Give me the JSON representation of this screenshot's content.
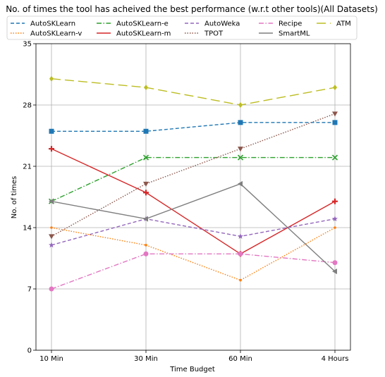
{
  "chart_data": {
    "type": "line",
    "title": "No. of times the tool has acheived the best performance (w.r.t other tools)(All Datasets)",
    "xlabel": "Time Budget",
    "ylabel": "No. of times",
    "categories": [
      "10 Min",
      "30 Min",
      "60 Min",
      "4 Hours"
    ],
    "ylim": [
      0,
      35
    ],
    "yticks": [
      0,
      7,
      14,
      21,
      28,
      35
    ],
    "grid": true,
    "legend_position": "top",
    "series": [
      {
        "name": "AutoSKLearn",
        "values": [
          25,
          25,
          26,
          26
        ],
        "color": "#1f77b4",
        "dash": "5,3",
        "marker": "square"
      },
      {
        "name": "AutoSKLearn-v",
        "values": [
          14,
          12,
          8,
          14
        ],
        "color": "#ff7f0e",
        "dash": "1.5,2",
        "marker": "dot"
      },
      {
        "name": "AutoSKLearn-e",
        "values": [
          17,
          22,
          22,
          22
        ],
        "color": "#2ca02c",
        "dash": "7,2.5,1.5,2.5",
        "marker": "x"
      },
      {
        "name": "AutoSKLearn-m",
        "values": [
          23,
          18,
          11,
          17
        ],
        "color": "#d62728",
        "dash": "",
        "marker": "plus"
      },
      {
        "name": "AutoWeka",
        "values": [
          12,
          15,
          13,
          15
        ],
        "color": "#9467bd",
        "dash": "5,3",
        "marker": "star"
      },
      {
        "name": "TPOT",
        "values": [
          13,
          19,
          23,
          27
        ],
        "color": "#8c564b",
        "dash": "1.5,2",
        "marker": "triangle-down"
      },
      {
        "name": "Recipe",
        "values": [
          7,
          11,
          11,
          10
        ],
        "color": "#e377c2",
        "dash": "7,2.5,1.5,2.5",
        "marker": "circle"
      },
      {
        "name": "SmartML",
        "values": [
          17,
          15,
          19,
          9
        ],
        "color": "#7f7f7f",
        "dash": "",
        "marker": "triangle-left"
      },
      {
        "name": "ATM",
        "values": [
          31,
          30,
          28,
          30
        ],
        "color": "#bcbd22",
        "dash": "13,6",
        "marker": "diamond"
      }
    ]
  }
}
